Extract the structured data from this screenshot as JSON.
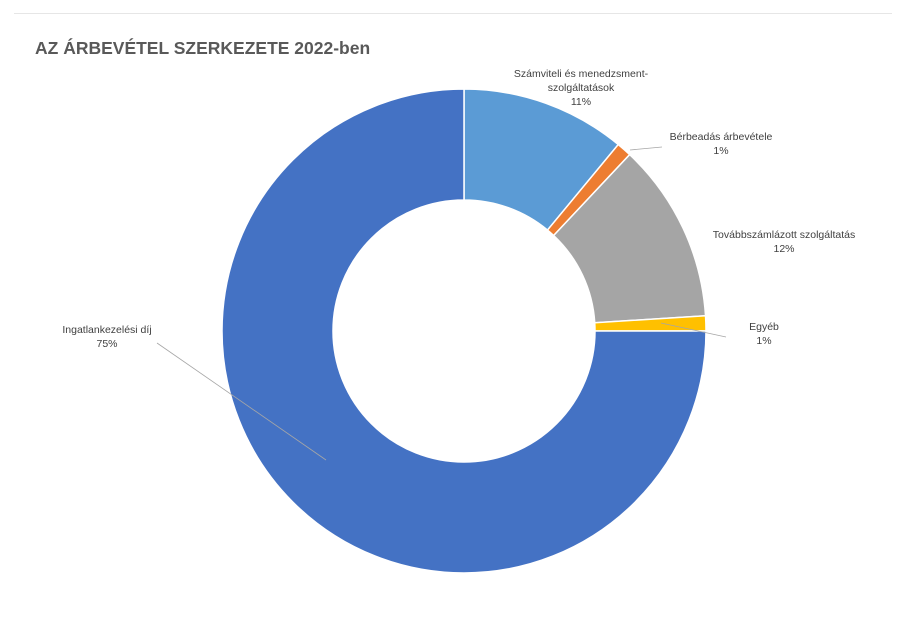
{
  "chart_data": {
    "type": "pie",
    "title": "AZ ÁRBEVÉTEL SZERKEZETE 2022-ben",
    "slices": [
      {
        "label_lines": [
          "Számviteli és menedzsment-",
          "szolgáltatások"
        ],
        "value": 11,
        "value_label": "11%",
        "color": "#5b9bd5"
      },
      {
        "label_lines": [
          "Bérbeadás árbevétele"
        ],
        "value": 1,
        "value_label": "1%",
        "color": "#ed7d31"
      },
      {
        "label_lines": [
          "Továbbszámlázott szolgáltatás"
        ],
        "value": 12,
        "value_label": "12%",
        "color": "#a5a5a5"
      },
      {
        "label_lines": [
          "Egyéb"
        ],
        "value": 1,
        "value_label": "1%",
        "color": "#ffc000"
      },
      {
        "label_lines": [
          "Ingatlankezelési díj"
        ],
        "value": 75,
        "value_label": "75%",
        "color": "#4472c4"
      }
    ]
  }
}
